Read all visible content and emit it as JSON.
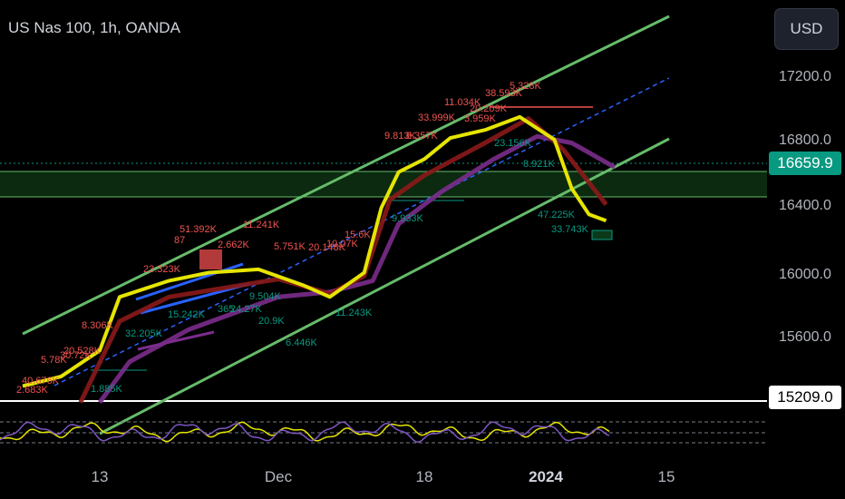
{
  "header": {
    "title": "US Nas 100, 1h, OANDA",
    "currency_button": "USD"
  },
  "colors": {
    "background": "#000000",
    "channel": "#66bb6a",
    "dashed_midline": "#2962ff",
    "ema_fast": "#e5e500",
    "ema_mid": "#8b1a1a",
    "ema_slow": "#7b2c8c",
    "zone_fill": "#0b2a10",
    "current_price": "#089981"
  },
  "price_axis": {
    "ticks": [
      "17200.0",
      "16800.0",
      "16400.0",
      "16000.0",
      "15600.0"
    ],
    "current_price": "16659.9",
    "level_price": "15209.0"
  },
  "time_axis": {
    "ticks": [
      "13",
      "Dec",
      "18",
      "2024",
      "15"
    ]
  },
  "chart_data": {
    "type": "line",
    "symbol": "US Nas 100",
    "interval": "1h",
    "source": "OANDA",
    "ylim": [
      15150,
      17430
    ],
    "x_categories": [
      "13",
      "Dec",
      "18",
      "2024",
      "15"
    ],
    "series": [
      {
        "role": "ema-fast",
        "color": "#e5e500",
        "points": [
          [
            "Nov 09",
            15300
          ],
          [
            "Nov 11",
            15360
          ],
          [
            "Nov 13",
            15520
          ],
          [
            "Nov 15",
            15850
          ],
          [
            "Nov 20",
            15950
          ],
          [
            "Nov 24",
            16000
          ],
          [
            "Nov 29",
            16020
          ],
          [
            "Dec 04",
            15920
          ],
          [
            "Dec 07",
            15850
          ],
          [
            "Dec 11",
            16000
          ],
          [
            "Dec 13",
            16400
          ],
          [
            "Dec 15",
            16620
          ],
          [
            "Dec 18",
            16700
          ],
          [
            "Dec 21",
            16830
          ],
          [
            "Dec 25",
            16880
          ],
          [
            "Dec 29",
            16960
          ],
          [
            "Jan 02",
            16820
          ],
          [
            "Jan 04",
            16520
          ],
          [
            "Jan 06",
            16360
          ],
          [
            "Jan 08",
            16320
          ]
        ]
      },
      {
        "role": "ema-mid",
        "color": "#8b1a1a",
        "points": [
          [
            "Nov 12",
            15200
          ],
          [
            "Nov 15",
            15700
          ],
          [
            "Nov 20",
            15850
          ],
          [
            "Dec 01",
            15960
          ],
          [
            "Dec 07",
            15870
          ],
          [
            "Dec 11",
            15980
          ],
          [
            "Dec 14",
            16450
          ],
          [
            "Dec 18",
            16600
          ],
          [
            "Dec 25",
            16800
          ],
          [
            "Dec 30",
            16950
          ],
          [
            "Jan 03",
            16760
          ],
          [
            "Jan 08",
            16420
          ]
        ]
      },
      {
        "role": "ema-slow",
        "color": "#7b2c8c",
        "points": [
          [
            "Nov 13",
            15200
          ],
          [
            "Nov 16",
            15450
          ],
          [
            "Nov 22",
            15650
          ],
          [
            "Dec 01",
            15850
          ],
          [
            "Dec 07",
            15880
          ],
          [
            "Dec 12",
            15950
          ],
          [
            "Dec 15",
            16300
          ],
          [
            "Dec 20",
            16500
          ],
          [
            "Dec 26",
            16700
          ],
          [
            "Dec 31",
            16840
          ],
          [
            "Jan 04",
            16800
          ],
          [
            "Jan 09",
            16650
          ]
        ]
      }
    ],
    "annotations_volume": [
      "2.683K",
      "40.676K",
      "5.78K",
      "30.72K",
      "20.528K",
      "8.306K",
      "32.205K",
      "23.323K",
      "15.242K",
      "87",
      "51.392K",
      "2.662K",
      "11.241K",
      "365",
      "24.27K",
      "9.504K",
      "20.9K",
      "6.446K",
      "5.751K",
      "20.148K",
      "10.07K",
      "15.6K",
      "11.243K",
      "9.813K",
      "8.357K",
      "9.933K",
      "33.999K",
      "11.034K",
      "3.959K",
      "20.209K",
      "38.593K",
      "5.328K",
      "23.156K",
      "8.921K",
      "47.225K",
      "33.743K",
      "1.885K"
    ],
    "grid": false
  }
}
